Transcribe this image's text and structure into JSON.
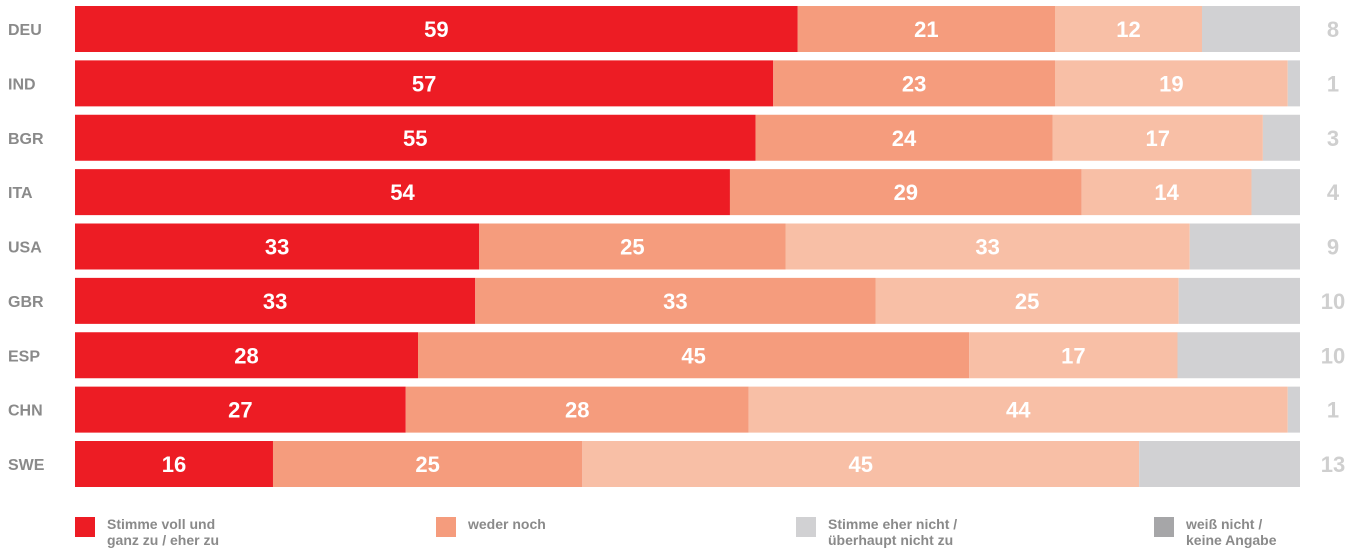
{
  "chart_data": {
    "type": "bar",
    "orientation": "horizontal",
    "stacked": true,
    "categories": [
      "DEU",
      "IND",
      "BGR",
      "ITA",
      "USA",
      "GBR",
      "ESP",
      "CHN",
      "SWE"
    ],
    "series": [
      {
        "name": "Stimme voll und\nganz zu / eher zu",
        "color": "#ed1c24",
        "values": [
          59,
          57,
          55,
          54,
          33,
          33,
          28,
          27,
          16
        ]
      },
      {
        "name": "weder noch",
        "color": "#f59c7d",
        "values": [
          21,
          23,
          24,
          29,
          25,
          33,
          45,
          28,
          25
        ]
      },
      {
        "name": "Stimme eher nicht /\nüberhaupt nicht zu",
        "color": "#f8bfa6",
        "values": [
          12,
          19,
          17,
          14,
          33,
          25,
          17,
          44,
          45
        ]
      },
      {
        "name": "weiß nicht /\nkeine Angabe",
        "color": "#d1d1d3",
        "values": [
          8,
          1,
          3,
          4,
          9,
          10,
          10,
          1,
          13
        ]
      }
    ],
    "legend_position": "bottom",
    "grid": false
  },
  "legend": {
    "swatch_colors": [
      "#ed1c24",
      "#f59c7d",
      "#d1d1d3",
      "#a6a6a8"
    ]
  }
}
